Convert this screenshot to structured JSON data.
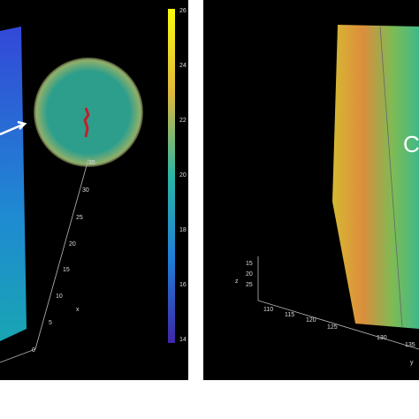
{
  "left_panel": {
    "colorbar_ticks": [
      26,
      24,
      22,
      20,
      18,
      16,
      14
    ],
    "axis_ticks": [
      35,
      30,
      25,
      20,
      15,
      10,
      5,
      0
    ],
    "axis_label": "x"
  },
  "right_panel": {
    "z_ticks": [
      15,
      20,
      25
    ],
    "z_label": "z",
    "y_ticks": [
      110,
      115,
      120,
      125,
      130,
      135
    ],
    "y_label": "y",
    "panel_letter": "C"
  }
}
